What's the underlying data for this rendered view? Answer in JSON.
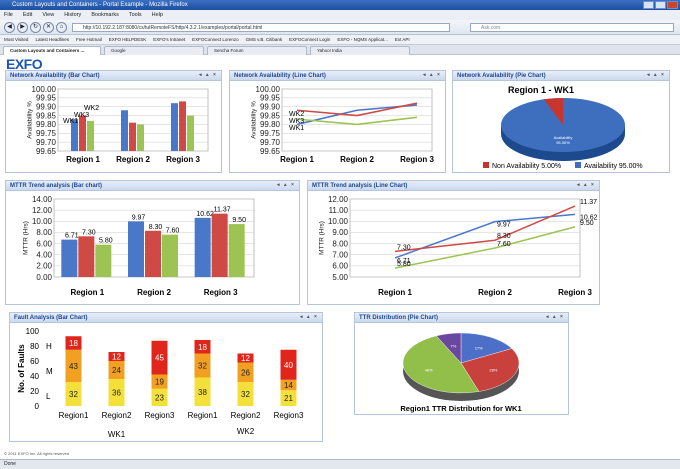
{
  "browser": {
    "title": "Custom Layouts and Containers - Portal Example - Mozilla Firefox",
    "menu": [
      "File",
      "Edit",
      "View",
      "History",
      "Bookmarks",
      "Tools",
      "Help"
    ],
    "url": "http://10.192.2.187:8080/cs/tutRemoteFS/http/4.3.2.1/examples/portal/portal.html",
    "search_placeholder": "Ask.com",
    "bookmarks": [
      "Most Visited",
      "Latest Headlines",
      "Free Hotmail",
      "EXFO HELPDESK",
      "EXFO's Intranet",
      "EXFOConnect Lorenzo",
      "GMS v.B. Citibank",
      "EXFOConnect Login",
      "EXFO - NQMS Applicat...",
      "Ext API"
    ],
    "tabs": [
      "Custom Layouts and Containers ...",
      "Google",
      "Sencha Forum",
      "Yahoo! India"
    ],
    "status": "Done",
    "footer": "© 2011 EXFO Inc. All rights reserved"
  },
  "logo": {
    "text": "EXFO",
    "sub": "EXPERTISE REACHING OUT"
  },
  "colors": {
    "blue": "#4a78c9",
    "red": "#cf4a45",
    "green": "#9dc453",
    "header": "#1d4795",
    "fault_red": "#e0261b",
    "fault_orange": "#f2a021",
    "fault_yellow": "#f4e03a"
  },
  "portlets": {
    "avail_bar": {
      "title": "Network Availability (Bar Chart)"
    },
    "avail_line": {
      "title": "Network Availability (Line Chart)"
    },
    "avail_pie": {
      "title": "Network Availability (Pie Chart)"
    },
    "mttr_bar": {
      "title": "MTTR Trend analysis (Bar chart)"
    },
    "mttr_line": {
      "title": "MTTR Trend analysis (Line Chart)"
    },
    "fault_bar": {
      "title": "Fault Analysis (Bar Chart)"
    },
    "ttr_pie": {
      "title": "TTR Distribution (Pie Chart)"
    }
  },
  "chart_data": [
    {
      "id": "avail_bar",
      "type": "bar",
      "ylabel": "Availability %",
      "ylim": [
        99.65,
        100.0
      ],
      "yticks": [
        "100.00",
        "99.95",
        "99.90",
        "99.85",
        "99.80",
        "99.75",
        "99.70",
        "99.65"
      ],
      "categories": [
        "Region 1",
        "Region 2",
        "Region 3"
      ],
      "series": [
        {
          "name": "WK1",
          "values": [
            99.83,
            99.88,
            99.92
          ]
        },
        {
          "name": "WK2",
          "values": [
            99.85,
            99.81,
            99.93
          ]
        },
        {
          "name": "WK3",
          "values": [
            99.82,
            99.8,
            99.85
          ]
        }
      ],
      "annotations": [
        "WK2",
        "WK3",
        "WK1"
      ]
    },
    {
      "id": "avail_line",
      "type": "line",
      "ylabel": "Availability %",
      "ylim": [
        99.65,
        100.0
      ],
      "yticks": [
        "100.00",
        "99.95",
        "99.90",
        "99.85",
        "99.80",
        "99.75",
        "99.70",
        "99.65"
      ],
      "categories": [
        "Region 1",
        "Region 2",
        "Region 3"
      ],
      "series": [
        {
          "name": "WK1",
          "values": [
            99.8,
            99.88,
            99.91
          ]
        },
        {
          "name": "WK2",
          "values": [
            99.88,
            99.85,
            99.92
          ]
        },
        {
          "name": "WK3",
          "values": [
            99.83,
            99.8,
            99.84
          ]
        }
      ],
      "annotations": [
        "WK2",
        "WK3",
        "WK1"
      ]
    },
    {
      "id": "avail_pie",
      "type": "pie",
      "title": "Region 1 - WK1",
      "slices": [
        {
          "name": "Non Availability",
          "value": 5.0
        },
        {
          "name": "Availability",
          "value": 95.0
        }
      ],
      "legend": [
        "Non Availability 5.00%",
        "Availability 95.00%"
      ],
      "slice_label": "Availability\n95.00%"
    },
    {
      "id": "mttr_bar",
      "type": "bar",
      "ylabel": "MTTR (Hrs)",
      "ylim": [
        0,
        14
      ],
      "yticks": [
        "14.00",
        "12.00",
        "10.00",
        "8.00",
        "6.00",
        "4.00",
        "2.00",
        "0.00"
      ],
      "categories": [
        "Region 1",
        "Region 2",
        "Region 3"
      ],
      "series": [
        {
          "values": [
            6.71,
            9.97,
            10.62
          ]
        },
        {
          "values": [
            7.3,
            8.3,
            11.37
          ]
        },
        {
          "values": [
            5.8,
            7.6,
            9.5
          ]
        }
      ],
      "labels": [
        [
          "6.71",
          "9.97",
          "10.62"
        ],
        [
          "7.30",
          "8.30",
          "11.37"
        ],
        [
          "5.80",
          "7.60",
          "9.50"
        ]
      ]
    },
    {
      "id": "mttr_line",
      "type": "line",
      "ylabel": "MTTR (Hrs)",
      "ylim": [
        0,
        12
      ],
      "yticks": [
        "12.00",
        "11.00",
        "10.00",
        "9.00",
        "8.00",
        "7.00",
        "6.00",
        "5.00"
      ],
      "categories": [
        "Region 1",
        "Region 2",
        "Region 3"
      ],
      "series": [
        {
          "values": [
            6.71,
            9.97,
            10.62
          ]
        },
        {
          "values": [
            7.3,
            8.3,
            11.37
          ]
        },
        {
          "values": [
            5.8,
            7.6,
            9.5
          ]
        }
      ],
      "labels": [
        [
          "6.71",
          "9.97",
          "10.62"
        ],
        [
          "7.30",
          "8.30",
          "11.37"
        ],
        [
          "5.80",
          "7.60",
          "9.50"
        ]
      ]
    },
    {
      "id": "fault_bar",
      "type": "bar",
      "ylabel": "No. of Faults",
      "ylim": [
        0,
        100
      ],
      "yticks": [
        "100",
        "80",
        "60",
        "40",
        "20",
        "0"
      ],
      "level_labels": [
        "H",
        "M",
        "L"
      ],
      "categories": [
        "Region1",
        "Region2",
        "Region3",
        "Region1",
        "Region2",
        "Region3"
      ],
      "groups": [
        "WK1",
        "WK2"
      ],
      "stacks": [
        {
          "L": 32,
          "M": 43,
          "H": 18
        },
        {
          "L": 36,
          "M": 24,
          "H": 12
        },
        {
          "L": 23,
          "M": 19,
          "H": 45
        },
        {
          "L": 38,
          "M": 32,
          "H": 18
        },
        {
          "L": 32,
          "M": 26,
          "H": 12
        },
        {
          "L": 21,
          "M": 14,
          "H": 40
        }
      ],
      "labels": [
        [
          "32",
          "43",
          "18"
        ],
        [
          "36",
          "24",
          "12"
        ],
        [
          "23",
          "19",
          "45"
        ],
        [
          "38",
          "32",
          "18"
        ],
        [
          "32",
          "26",
          "12"
        ],
        [
          "21",
          "14",
          "40"
        ]
      ]
    },
    {
      "id": "ttr_pie",
      "type": "pie",
      "title": "Region1 TTR Distribution for WK1",
      "slices": [
        {
          "name": "Blue",
          "value": 17
        },
        {
          "name": "Red",
          "value": 28
        },
        {
          "name": "Green",
          "value": 48
        },
        {
          "name": "Purple",
          "value": 7
        }
      ],
      "slice_labels": [
        "17%",
        "28%",
        "48%",
        "7%"
      ]
    }
  ]
}
